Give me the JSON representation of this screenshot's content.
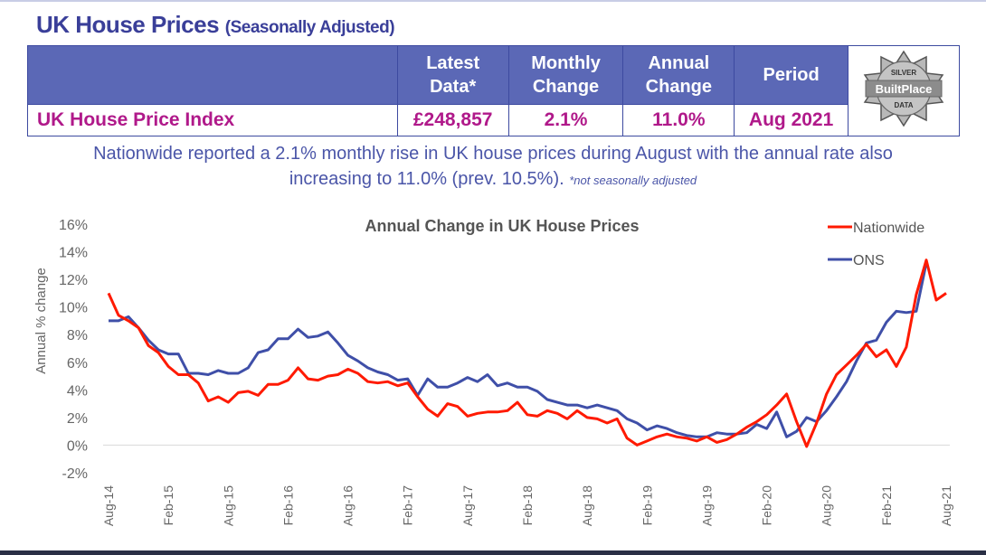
{
  "header": {
    "title": "UK House Prices",
    "subtitle": "(Seasonally Adjusted)"
  },
  "table": {
    "columns": [
      "",
      "Latest\nData*",
      "Monthly\nChange",
      "Annual\nChange",
      "Period"
    ],
    "col_line1": [
      "Latest",
      "Monthly",
      "Annual",
      "Period"
    ],
    "col_line2": [
      "Data*",
      "Change",
      "Change",
      ""
    ],
    "row": {
      "label": "UK House Price Index",
      "latest": "£248,857",
      "monthly": "2.1%",
      "annual": "11.0%",
      "period": "Aug 2021"
    },
    "logo": {
      "top": "SILVER",
      "middle": "BuiltPlace",
      "bottom": "DATA"
    }
  },
  "summary": {
    "text1": "Nationwide reported a 2.1% monthly rise in UK house prices during August with the annual rate also",
    "text2": "increasing to 11.0% (prev. 10.5%).",
    "note": "*not seasonally adjusted"
  },
  "colors": {
    "nationwide": "#ff1a00",
    "ons": "#3f4fa8",
    "brand": "#3a3f99",
    "header_bg": "#5b68b6",
    "value": "#b0198a"
  },
  "chart_data": {
    "type": "line",
    "title": "Annual Change in UK House Prices",
    "ylabel": "Annual % change",
    "xlabel": "",
    "ylim": [
      -2,
      16
    ],
    "yticks": [
      "-2%",
      "0%",
      "2%",
      "4%",
      "6%",
      "8%",
      "10%",
      "12%",
      "14%",
      "16%"
    ],
    "xticks": [
      "Aug-14",
      "Feb-15",
      "Aug-15",
      "Feb-16",
      "Aug-16",
      "Feb-17",
      "Aug-17",
      "Feb-18",
      "Aug-18",
      "Feb-19",
      "Aug-19",
      "Feb-20",
      "Aug-20",
      "Feb-21",
      "Aug-21"
    ],
    "x_start": "Aug-14",
    "x_end": "Aug-21",
    "frequency": "monthly",
    "legend": "top-right",
    "grid": false,
    "series": [
      {
        "name": "Nationwide",
        "color": "#ff1a00",
        "values": [
          11.0,
          9.4,
          9.0,
          8.5,
          7.2,
          6.7,
          5.7,
          5.1,
          5.1,
          4.5,
          3.2,
          3.5,
          3.1,
          3.8,
          3.9,
          3.6,
          4.4,
          4.4,
          4.7,
          5.6,
          4.8,
          4.7,
          5.0,
          5.1,
          5.5,
          5.2,
          4.6,
          4.5,
          4.6,
          4.3,
          4.5,
          3.5,
          2.6,
          2.1,
          3.0,
          2.8,
          2.1,
          2.3,
          2.4,
          2.4,
          2.5,
          3.1,
          2.2,
          2.1,
          2.5,
          2.3,
          1.9,
          2.5,
          2.0,
          1.9,
          1.6,
          1.9,
          0.5,
          0.0,
          0.3,
          0.6,
          0.8,
          0.6,
          0.5,
          0.3,
          0.6,
          0.2,
          0.4,
          0.8,
          1.3,
          1.7,
          2.2,
          2.9,
          3.7,
          1.7,
          -0.1,
          1.6,
          3.7,
          5.1,
          5.8,
          6.5,
          7.3,
          6.4,
          6.9,
          5.7,
          7.1,
          10.9,
          13.4,
          10.5,
          11.0
        ]
      },
      {
        "name": "ONS",
        "color": "#3f4fa8",
        "values": [
          9.0,
          9.0,
          9.3,
          8.5,
          7.6,
          6.9,
          6.6,
          6.6,
          5.2,
          5.2,
          5.1,
          5.4,
          5.2,
          5.2,
          5.6,
          6.7,
          6.9,
          7.7,
          7.7,
          8.4,
          7.8,
          7.9,
          8.2,
          7.4,
          6.5,
          6.1,
          5.6,
          5.3,
          5.1,
          4.7,
          4.8,
          3.6,
          4.8,
          4.2,
          4.2,
          4.5,
          4.9,
          4.6,
          5.1,
          4.3,
          4.5,
          4.2,
          4.2,
          3.9,
          3.3,
          3.1,
          2.9,
          2.9,
          2.7,
          2.9,
          2.7,
          2.5,
          1.9,
          1.6,
          1.1,
          1.4,
          1.2,
          0.9,
          0.7,
          0.6,
          0.6,
          0.9,
          0.8,
          0.8,
          0.9,
          1.5,
          1.2,
          2.4,
          0.6,
          1.0,
          2.0,
          1.7,
          2.5,
          3.5,
          4.6,
          6.1,
          7.4,
          7.6,
          8.9,
          9.7,
          9.6,
          9.7,
          13.2
        ]
      }
    ]
  }
}
